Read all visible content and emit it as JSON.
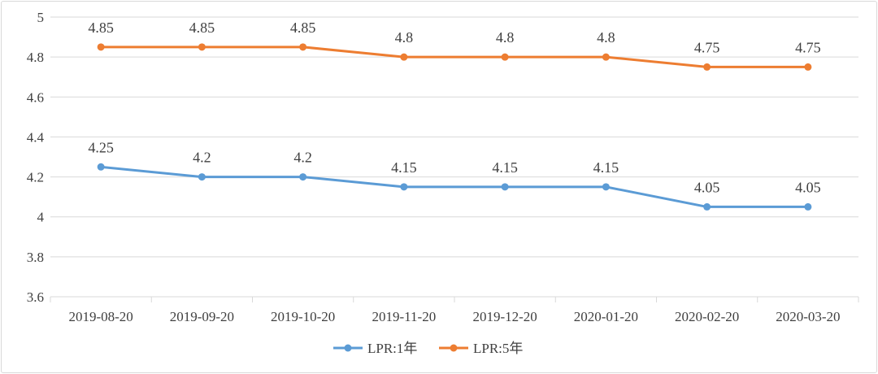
{
  "chart_data": {
    "type": "line",
    "title": "",
    "xlabel": "",
    "ylabel": "",
    "categories": [
      "2019-08-20",
      "2019-09-20",
      "2019-10-20",
      "2019-11-20",
      "2019-12-20",
      "2020-01-20",
      "2020-02-20",
      "2020-03-20"
    ],
    "ylim": [
      3.6,
      5
    ],
    "yticks": [
      "3.6",
      "3.8",
      "4",
      "4.2",
      "4.4",
      "4.6",
      "4.8",
      "5"
    ],
    "grid": true,
    "legend_position": "bottom",
    "series": [
      {
        "name": "LPR:1年",
        "color": "#5b9bd5",
        "values": [
          4.25,
          4.2,
          4.2,
          4.15,
          4.15,
          4.15,
          4.05,
          4.05
        ],
        "labels": [
          "4.25",
          "4.2",
          "4.2",
          "4.15",
          "4.15",
          "4.15",
          "4.05",
          "4.05"
        ]
      },
      {
        "name": "LPR:5年",
        "color": "#ed7d31",
        "values": [
          4.85,
          4.85,
          4.85,
          4.8,
          4.8,
          4.8,
          4.75,
          4.75
        ],
        "labels": [
          "4.85",
          "4.85",
          "4.85",
          "4.8",
          "4.8",
          "4.8",
          "4.75",
          "4.75"
        ]
      }
    ]
  }
}
